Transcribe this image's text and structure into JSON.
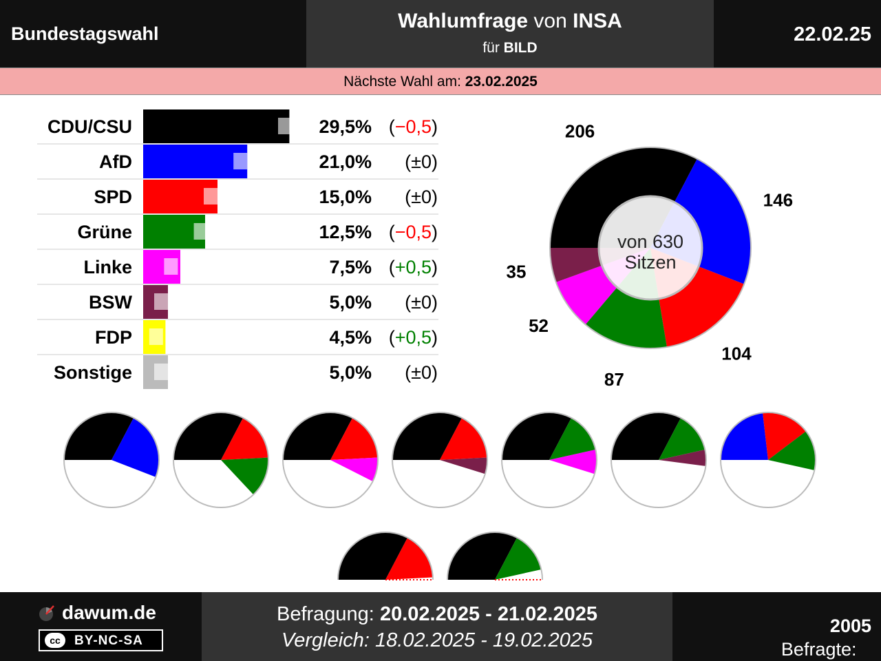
{
  "header": {
    "left_title": "Bundestagswahl",
    "mid_line1_bold": "Wahlumfrage",
    "mid_line1_mid": " von ",
    "mid_line1_bold2": "INSA",
    "mid_line2_prefix": "für ",
    "mid_line2_bold": "BILD",
    "date": "22.02.25"
  },
  "next_election": {
    "label": "Nächste Wahl am: ",
    "date": "23.02.2025"
  },
  "chart_data": [
    {
      "type": "bar",
      "title": "",
      "categories": [
        "CDU/CSU",
        "AfD",
        "SPD",
        "Grüne",
        "Linke",
        "BSW",
        "FDP",
        "Sonstige"
      ],
      "values": [
        29.5,
        21.0,
        15.0,
        12.5,
        7.5,
        5.0,
        4.5,
        5.0
      ],
      "previous_values": [
        30.0,
        21.0,
        15.0,
        13.0,
        7.0,
        5.0,
        4.0,
        5.0
      ],
      "value_labels": [
        "29,5%",
        "21,0%",
        "15,0%",
        "12,5%",
        "7,5%",
        "5,0%",
        "4,5%",
        "5,0%"
      ],
      "change_labels": [
        "−0,5",
        "±0",
        "±0",
        "−0,5",
        "+0,5",
        "±0",
        "+0,5",
        "±0"
      ],
      "change_sign": [
        "neg",
        "zero",
        "zero",
        "neg",
        "pos",
        "zero",
        "pos",
        "zero"
      ],
      "colors": [
        "#000000",
        "#0000ff",
        "#ff0000",
        "#008000",
        "#ff00ff",
        "#7a1f4a",
        "#ffff00",
        "#bbbbbb"
      ]
    },
    {
      "type": "pie",
      "title": "",
      "center_line1": "von 630",
      "center_line2": "Sitzen",
      "total": 630,
      "slices": [
        {
          "party": "CDU/CSU",
          "seats": 206,
          "label": "206",
          "color": "#000000"
        },
        {
          "party": "AfD",
          "seats": 146,
          "label": "146",
          "color": "#0000ff"
        },
        {
          "party": "SPD",
          "seats": 104,
          "label": "104",
          "color": "#ff0000"
        },
        {
          "party": "Grüne",
          "seats": 87,
          "label": "87",
          "color": "#008000"
        },
        {
          "party": "Linke",
          "seats": 52,
          "label": "52",
          "color": "#ff00ff"
        },
        {
          "party": "BSW",
          "seats": 35,
          "label": "35",
          "color": "#7a1f4a"
        }
      ]
    }
  ],
  "coalitions": [
    {
      "name": "CDU/CSU + AfD",
      "parts": [
        {
          "party": "CDU/CSU",
          "seats": 206,
          "color": "#000000"
        },
        {
          "party": "AfD",
          "seats": 146,
          "color": "#0000ff"
        }
      ]
    },
    {
      "name": "CDU/CSU + SPD + Grüne",
      "parts": [
        {
          "party": "CDU/CSU",
          "seats": 206,
          "color": "#000000"
        },
        {
          "party": "SPD",
          "seats": 104,
          "color": "#ff0000"
        },
        {
          "party": "Grüne",
          "seats": 87,
          "color": "#008000"
        }
      ]
    },
    {
      "name": "CDU/CSU + SPD + Linke",
      "parts": [
        {
          "party": "CDU/CSU",
          "seats": 206,
          "color": "#000000"
        },
        {
          "party": "SPD",
          "seats": 104,
          "color": "#ff0000"
        },
        {
          "party": "Linke",
          "seats": 52,
          "color": "#ff00ff"
        }
      ]
    },
    {
      "name": "CDU/CSU + SPD + BSW",
      "parts": [
        {
          "party": "CDU/CSU",
          "seats": 206,
          "color": "#000000"
        },
        {
          "party": "SPD",
          "seats": 104,
          "color": "#ff0000"
        },
        {
          "party": "BSW",
          "seats": 35,
          "color": "#7a1f4a"
        }
      ]
    },
    {
      "name": "CDU/CSU + Grüne + Linke",
      "parts": [
        {
          "party": "CDU/CSU",
          "seats": 206,
          "color": "#000000"
        },
        {
          "party": "Grüne",
          "seats": 87,
          "color": "#008000"
        },
        {
          "party": "Linke",
          "seats": 52,
          "color": "#ff00ff"
        }
      ]
    },
    {
      "name": "CDU/CSU + Grüne + BSW",
      "parts": [
        {
          "party": "CDU/CSU",
          "seats": 206,
          "color": "#000000"
        },
        {
          "party": "Grüne",
          "seats": 87,
          "color": "#008000"
        },
        {
          "party": "BSW",
          "seats": 35,
          "color": "#7a1f4a"
        }
      ]
    },
    {
      "name": "AfD + SPD + Grüne",
      "parts": [
        {
          "party": "AfD",
          "seats": 146,
          "color": "#0000ff"
        },
        {
          "party": "SPD",
          "seats": 104,
          "color": "#ff0000"
        },
        {
          "party": "Grüne",
          "seats": 87,
          "color": "#008000"
        }
      ]
    },
    {
      "name": "CDU/CSU + SPD",
      "half": true,
      "parts": [
        {
          "party": "CDU/CSU",
          "seats": 206,
          "color": "#000000"
        },
        {
          "party": "SPD",
          "seats": 104,
          "color": "#ff0000"
        }
      ]
    },
    {
      "name": "CDU/CSU + Grüne",
      "half": true,
      "parts": [
        {
          "party": "CDU/CSU",
          "seats": 206,
          "color": "#000000"
        },
        {
          "party": "Grüne",
          "seats": 87,
          "color": "#008000"
        }
      ]
    }
  ],
  "footer": {
    "site": "dawum.de",
    "license": "BY-NC-SA",
    "license_symbol": "cc",
    "survey_label": "Befragung: ",
    "survey_dates": "20.02.2025 - 21.02.2025",
    "compare_text": "Vergleich: 18.02.2025 - 19.02.2025",
    "respondents_label": "Befragte: ",
    "respondents": "2005"
  },
  "colors": {
    "pos": "#008000",
    "neg": "#ff0000",
    "zero": "#000000",
    "next_bar": "#f4a9a9"
  }
}
